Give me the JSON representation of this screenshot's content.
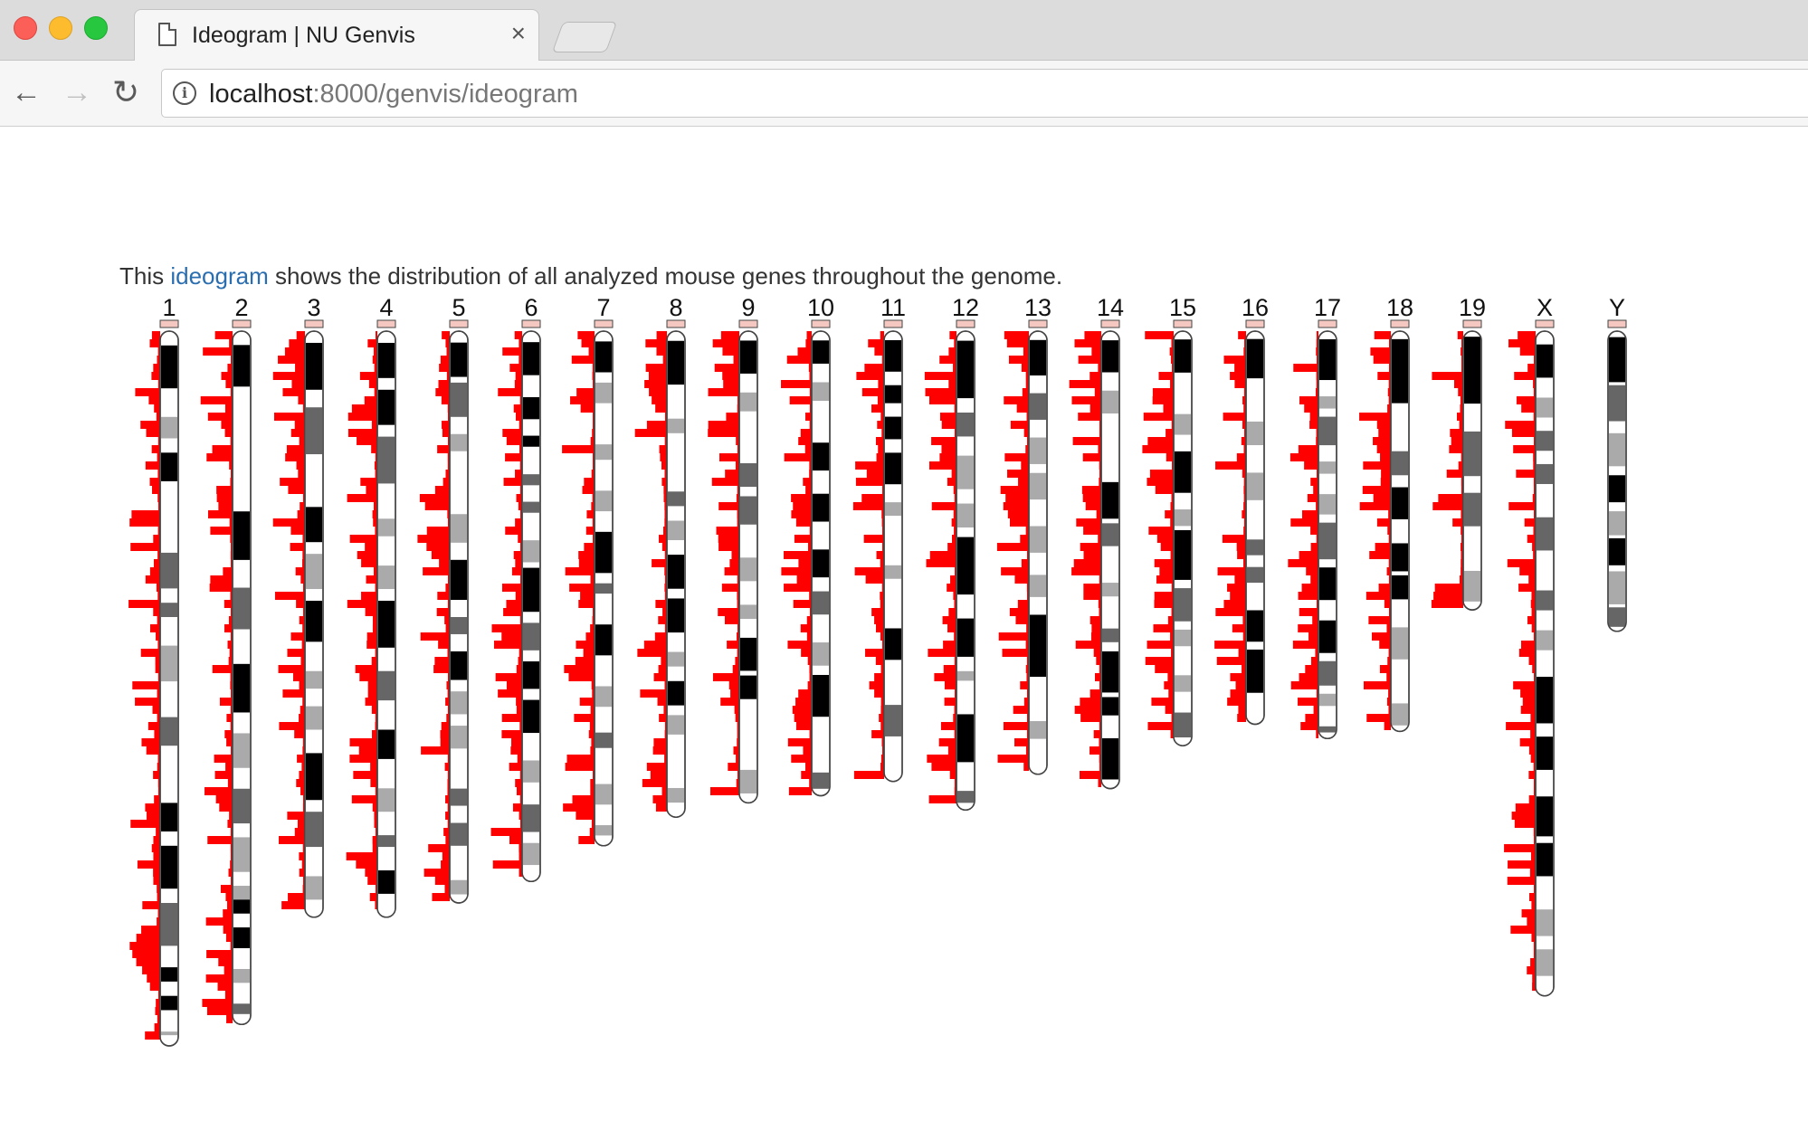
{
  "browser": {
    "tab_title": "Ideogram | NU Genvis",
    "close_glyph": "×",
    "url_host": "localhost",
    "url_path": ":8000/genvis/ideogram",
    "back_glyph": "←",
    "forward_glyph": "→",
    "reload_glyph": "↻"
  },
  "intro": {
    "prefix": "This ",
    "link": "ideogram",
    "suffix": " shows the distribution of all analyzed mouse genes throughout the genome."
  },
  "colors": {
    "histogram": "#ff0000",
    "link": "#2a6eb0",
    "band_dark": "#000000",
    "band_mid": "#666666",
    "band_light": "#aaaaaa",
    "centromere": "#f4c7c0"
  },
  "chromosomes": [
    {
      "name": "1",
      "rel_length": 1.0,
      "bands": [
        [
          0.02,
          0.08,
          "dark"
        ],
        [
          0.12,
          0.15,
          "light"
        ],
        [
          0.17,
          0.21,
          "dark"
        ],
        [
          0.31,
          0.36,
          "mid"
        ],
        [
          0.38,
          0.4,
          "mid"
        ],
        [
          0.44,
          0.49,
          "light"
        ],
        [
          0.54,
          0.58,
          "mid"
        ],
        [
          0.66,
          0.7,
          "dark"
        ],
        [
          0.72,
          0.78,
          "dark"
        ],
        [
          0.8,
          0.86,
          "mid"
        ],
        [
          0.89,
          0.91,
          "dark"
        ],
        [
          0.93,
          0.95,
          "dark"
        ],
        [
          0.98,
          1.0,
          "light"
        ]
      ]
    },
    {
      "name": "2",
      "rel_length": 0.97,
      "bands": [
        [
          0.02,
          0.08,
          "dark"
        ],
        [
          0.26,
          0.33,
          "dark"
        ],
        [
          0.37,
          0.43,
          "mid"
        ],
        [
          0.48,
          0.55,
          "dark"
        ],
        [
          0.58,
          0.63,
          "light"
        ],
        [
          0.66,
          0.71,
          "mid"
        ],
        [
          0.73,
          0.78,
          "light"
        ],
        [
          0.8,
          0.84,
          "light"
        ],
        [
          0.82,
          0.84,
          "dark"
        ],
        [
          0.86,
          0.89,
          "dark"
        ],
        [
          0.92,
          0.94,
          "light"
        ],
        [
          0.97,
          1.0,
          "mid"
        ]
      ]
    },
    {
      "name": "3",
      "rel_length": 0.82,
      "bands": [
        [
          0.02,
          0.1,
          "dark"
        ],
        [
          0.13,
          0.21,
          "mid"
        ],
        [
          0.3,
          0.36,
          "dark"
        ],
        [
          0.38,
          0.44,
          "light"
        ],
        [
          0.46,
          0.53,
          "dark"
        ],
        [
          0.58,
          0.61,
          "light"
        ],
        [
          0.64,
          0.68,
          "light"
        ],
        [
          0.72,
          0.8,
          "dark"
        ],
        [
          0.82,
          0.88,
          "mid"
        ],
        [
          0.93,
          0.97,
          "light"
        ]
      ]
    },
    {
      "name": "4",
      "rel_length": 0.82,
      "bands": [
        [
          0.02,
          0.08,
          "dark"
        ],
        [
          0.1,
          0.16,
          "dark"
        ],
        [
          0.18,
          0.26,
          "mid"
        ],
        [
          0.32,
          0.35,
          "light"
        ],
        [
          0.4,
          0.44,
          "light"
        ],
        [
          0.46,
          0.54,
          "dark"
        ],
        [
          0.58,
          0.63,
          "mid"
        ],
        [
          0.68,
          0.73,
          "dark"
        ],
        [
          0.78,
          0.82,
          "light"
        ],
        [
          0.86,
          0.88,
          "mid"
        ],
        [
          0.92,
          0.96,
          "dark"
        ]
      ]
    },
    {
      "name": "5",
      "rel_length": 0.8,
      "bands": [
        [
          0.02,
          0.08,
          "dark"
        ],
        [
          0.09,
          0.15,
          "mid"
        ],
        [
          0.18,
          0.21,
          "light"
        ],
        [
          0.32,
          0.37,
          "light"
        ],
        [
          0.4,
          0.47,
          "dark"
        ],
        [
          0.5,
          0.53,
          "mid"
        ],
        [
          0.56,
          0.61,
          "dark"
        ],
        [
          0.63,
          0.67,
          "light"
        ],
        [
          0.69,
          0.73,
          "light"
        ],
        [
          0.8,
          0.83,
          "mid"
        ],
        [
          0.86,
          0.9,
          "mid"
        ],
        [
          0.96,
          1.0,
          "light"
        ]
      ]
    },
    {
      "name": "6",
      "rel_length": 0.77,
      "bands": [
        [
          0.02,
          0.08,
          "dark"
        ],
        [
          0.12,
          0.16,
          "dark"
        ],
        [
          0.19,
          0.21,
          "dark"
        ],
        [
          0.26,
          0.28,
          "mid"
        ],
        [
          0.31,
          0.33,
          "mid"
        ],
        [
          0.38,
          0.42,
          "light"
        ],
        [
          0.43,
          0.51,
          "dark"
        ],
        [
          0.53,
          0.58,
          "mid"
        ],
        [
          0.6,
          0.65,
          "dark"
        ],
        [
          0.67,
          0.73,
          "dark"
        ],
        [
          0.78,
          0.82,
          "light"
        ],
        [
          0.86,
          0.91,
          "mid"
        ],
        [
          0.93,
          0.97,
          "light"
        ]
      ]
    },
    {
      "name": "7",
      "rel_length": 0.72,
      "bands": [
        [
          0.02,
          0.08,
          "dark"
        ],
        [
          0.1,
          0.14,
          "light"
        ],
        [
          0.22,
          0.25,
          "light"
        ],
        [
          0.31,
          0.35,
          "light"
        ],
        [
          0.39,
          0.47,
          "dark"
        ],
        [
          0.49,
          0.51,
          "mid"
        ],
        [
          0.57,
          0.63,
          "dark"
        ],
        [
          0.69,
          0.73,
          "light"
        ],
        [
          0.78,
          0.81,
          "mid"
        ],
        [
          0.88,
          0.92,
          "light"
        ],
        [
          0.96,
          0.98,
          "light"
        ]
      ]
    },
    {
      "name": "8",
      "rel_length": 0.68,
      "bands": [
        [
          0.02,
          0.11,
          "dark"
        ],
        [
          0.18,
          0.21,
          "light"
        ],
        [
          0.33,
          0.36,
          "mid"
        ],
        [
          0.39,
          0.43,
          "light"
        ],
        [
          0.46,
          0.53,
          "dark"
        ],
        [
          0.55,
          0.62,
          "dark"
        ],
        [
          0.66,
          0.69,
          "light"
        ],
        [
          0.72,
          0.77,
          "dark"
        ],
        [
          0.79,
          0.83,
          "light"
        ],
        [
          0.94,
          0.97,
          "light"
        ]
      ]
    },
    {
      "name": "9",
      "rel_length": 0.66,
      "bands": [
        [
          0.02,
          0.09,
          "dark"
        ],
        [
          0.13,
          0.17,
          "light"
        ],
        [
          0.28,
          0.33,
          "mid"
        ],
        [
          0.35,
          0.41,
          "mid"
        ],
        [
          0.48,
          0.53,
          "light"
        ],
        [
          0.58,
          0.61,
          "light"
        ],
        [
          0.65,
          0.72,
          "dark"
        ],
        [
          0.73,
          0.78,
          "dark"
        ],
        [
          0.93,
          0.98,
          "light"
        ]
      ]
    },
    {
      "name": "10",
      "rel_length": 0.65,
      "bands": [
        [
          0.02,
          0.07,
          "dark"
        ],
        [
          0.11,
          0.15,
          "light"
        ],
        [
          0.24,
          0.3,
          "dark"
        ],
        [
          0.35,
          0.41,
          "dark"
        ],
        [
          0.47,
          0.53,
          "dark"
        ],
        [
          0.56,
          0.61,
          "mid"
        ],
        [
          0.67,
          0.72,
          "light"
        ],
        [
          0.74,
          0.83,
          "dark"
        ],
        [
          0.95,
          1.0,
          "mid"
        ]
      ]
    },
    {
      "name": "11",
      "rel_length": 0.63,
      "bands": [
        [
          0.02,
          0.09,
          "dark"
        ],
        [
          0.12,
          0.16,
          "dark"
        ],
        [
          0.19,
          0.24,
          "dark"
        ],
        [
          0.27,
          0.34,
          "dark"
        ],
        [
          0.38,
          0.41,
          "light"
        ],
        [
          0.52,
          0.55,
          "light"
        ],
        [
          0.66,
          0.73,
          "dark"
        ],
        [
          0.83,
          0.9,
          "mid"
        ]
      ]
    },
    {
      "name": "12",
      "rel_length": 0.67,
      "bands": [
        [
          0.02,
          0.14,
          "dark"
        ],
        [
          0.17,
          0.22,
          "mid"
        ],
        [
          0.26,
          0.33,
          "light"
        ],
        [
          0.36,
          0.41,
          "light"
        ],
        [
          0.43,
          0.55,
          "dark"
        ],
        [
          0.6,
          0.68,
          "dark"
        ],
        [
          0.71,
          0.73,
          "light"
        ],
        [
          0.8,
          0.9,
          "dark"
        ],
        [
          0.96,
          1.0,
          "mid"
        ]
      ]
    },
    {
      "name": "13",
      "rel_length": 0.62,
      "bands": [
        [
          0.02,
          0.1,
          "dark"
        ],
        [
          0.14,
          0.2,
          "mid"
        ],
        [
          0.24,
          0.3,
          "light"
        ],
        [
          0.32,
          0.38,
          "light"
        ],
        [
          0.44,
          0.5,
          "light"
        ],
        [
          0.55,
          0.6,
          "light"
        ],
        [
          0.64,
          0.78,
          "dark"
        ],
        [
          0.88,
          0.92,
          "light"
        ]
      ]
    },
    {
      "name": "14",
      "rel_length": 0.64,
      "bands": [
        [
          0.02,
          0.09,
          "dark"
        ],
        [
          0.13,
          0.18,
          "light"
        ],
        [
          0.33,
          0.41,
          "dark"
        ],
        [
          0.42,
          0.47,
          "mid"
        ],
        [
          0.55,
          0.58,
          "light"
        ],
        [
          0.65,
          0.68,
          "mid"
        ],
        [
          0.7,
          0.79,
          "dark"
        ],
        [
          0.8,
          0.84,
          "dark"
        ],
        [
          0.89,
          0.98,
          "dark"
        ]
      ]
    },
    {
      "name": "15",
      "rel_length": 0.58,
      "bands": [
        [
          0.02,
          0.1,
          "dark"
        ],
        [
          0.2,
          0.25,
          "light"
        ],
        [
          0.29,
          0.39,
          "dark"
        ],
        [
          0.43,
          0.47,
          "light"
        ],
        [
          0.48,
          0.6,
          "dark"
        ],
        [
          0.62,
          0.7,
          "mid"
        ],
        [
          0.72,
          0.76,
          "light"
        ],
        [
          0.83,
          0.87,
          "light"
        ],
        [
          0.92,
          0.98,
          "mid"
        ]
      ]
    },
    {
      "name": "16",
      "rel_length": 0.55,
      "bands": [
        [
          0.02,
          0.12,
          "dark"
        ],
        [
          0.23,
          0.29,
          "light"
        ],
        [
          0.36,
          0.43,
          "light"
        ],
        [
          0.53,
          0.57,
          "mid"
        ],
        [
          0.6,
          0.64,
          "mid"
        ],
        [
          0.71,
          0.79,
          "dark"
        ],
        [
          0.81,
          0.92,
          "dark"
        ]
      ]
    },
    {
      "name": "17",
      "rel_length": 0.57,
      "bands": [
        [
          0.02,
          0.12,
          "dark"
        ],
        [
          0.16,
          0.19,
          "light"
        ],
        [
          0.21,
          0.28,
          "mid"
        ],
        [
          0.32,
          0.35,
          "light"
        ],
        [
          0.4,
          0.45,
          "light"
        ],
        [
          0.47,
          0.56,
          "mid"
        ],
        [
          0.58,
          0.66,
          "dark"
        ],
        [
          0.71,
          0.79,
          "dark"
        ],
        [
          0.81,
          0.87,
          "mid"
        ],
        [
          0.89,
          0.92,
          "light"
        ],
        [
          0.97,
          1.0,
          "mid"
        ]
      ]
    },
    {
      "name": "18",
      "rel_length": 0.56,
      "bands": [
        [
          0.02,
          0.18,
          "dark"
        ],
        [
          0.3,
          0.36,
          "mid"
        ],
        [
          0.39,
          0.47,
          "dark"
        ],
        [
          0.53,
          0.6,
          "dark"
        ],
        [
          0.61,
          0.67,
          "dark"
        ],
        [
          0.74,
          0.82,
          "light"
        ],
        [
          0.93,
          1.0,
          "light"
        ]
      ]
    },
    {
      "name": "19",
      "rel_length": 0.39,
      "bands": [
        [
          0.02,
          0.26,
          "dark"
        ],
        [
          0.36,
          0.52,
          "mid"
        ],
        [
          0.58,
          0.7,
          "mid"
        ],
        [
          0.86,
          0.97,
          "light"
        ]
      ]
    },
    {
      "name": "X",
      "rel_length": 0.93,
      "bands": [
        [
          0.02,
          0.07,
          "dark"
        ],
        [
          0.1,
          0.13,
          "light"
        ],
        [
          0.15,
          0.18,
          "mid"
        ],
        [
          0.2,
          0.23,
          "mid"
        ],
        [
          0.28,
          0.33,
          "mid"
        ],
        [
          0.39,
          0.42,
          "mid"
        ],
        [
          0.45,
          0.48,
          "light"
        ],
        [
          0.52,
          0.59,
          "dark"
        ],
        [
          0.61,
          0.66,
          "dark"
        ],
        [
          0.7,
          0.76,
          "dark"
        ],
        [
          0.77,
          0.82,
          "dark"
        ],
        [
          0.87,
          0.91,
          "light"
        ],
        [
          0.93,
          0.97,
          "light"
        ]
      ]
    },
    {
      "name": "Y",
      "rel_length": 0.42,
      "bands": [
        [
          0.02,
          0.17,
          "dark"
        ],
        [
          0.18,
          0.3,
          "mid"
        ],
        [
          0.34,
          0.45,
          "light"
        ],
        [
          0.48,
          0.57,
          "dark"
        ],
        [
          0.6,
          0.68,
          "light"
        ],
        [
          0.69,
          0.78,
          "dark"
        ],
        [
          0.8,
          0.91,
          "light"
        ],
        [
          0.92,
          1.0,
          "mid"
        ]
      ]
    }
  ]
}
